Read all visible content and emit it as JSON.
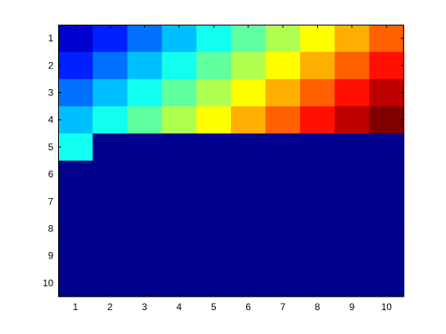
{
  "chart_data": {
    "type": "heatmap",
    "colormap": "jet",
    "rows": [
      1,
      2,
      3,
      4,
      5,
      6,
      7,
      8,
      9,
      10
    ],
    "columns": [
      1,
      2,
      3,
      4,
      5,
      6,
      7,
      8,
      9,
      10
    ],
    "x_tick_labels": [
      "1",
      "2",
      "3",
      "4",
      "5",
      "6",
      "7",
      "8",
      "9",
      "10"
    ],
    "y_tick_labels": [
      "1",
      "2",
      "3",
      "4",
      "5",
      "6",
      "7",
      "8",
      "9",
      "10"
    ],
    "values": [
      [
        1,
        2,
        3,
        4,
        5,
        6,
        7,
        8,
        9,
        10
      ],
      [
        2,
        3,
        4,
        5,
        6,
        7,
        8,
        9,
        10,
        11
      ],
      [
        3,
        4,
        5,
        6,
        7,
        8,
        9,
        10,
        11,
        12
      ],
      [
        4,
        5,
        6,
        7,
        8,
        9,
        10,
        11,
        12,
        13
      ],
      [
        5,
        0,
        0,
        0,
        0,
        0,
        0,
        0,
        0,
        0
      ],
      [
        0,
        0,
        0,
        0,
        0,
        0,
        0,
        0,
        0,
        0
      ],
      [
        0,
        0,
        0,
        0,
        0,
        0,
        0,
        0,
        0,
        0
      ],
      [
        0,
        0,
        0,
        0,
        0,
        0,
        0,
        0,
        0,
        0
      ],
      [
        0,
        0,
        0,
        0,
        0,
        0,
        0,
        0,
        0,
        0
      ],
      [
        0,
        0,
        0,
        0,
        0,
        0,
        0,
        0,
        0,
        0
      ]
    ],
    "color_limits": [
      0,
      13
    ],
    "title": "",
    "xlabel": "",
    "ylabel": "",
    "grid": false,
    "y_axis_direction": "reverse"
  }
}
